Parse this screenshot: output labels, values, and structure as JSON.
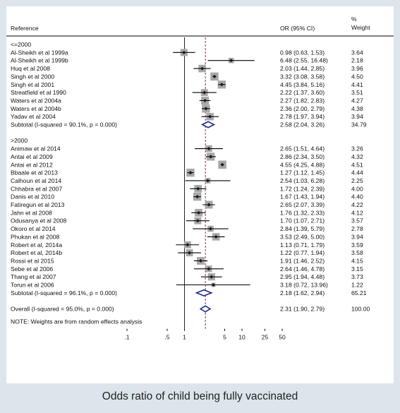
{
  "chart_data": {
    "type": "forest",
    "headers": {
      "reference": "Reference",
      "ci": "OR (95% CI)",
      "weight_line1": "%",
      "weight_line2": "Weight"
    },
    "x_scale": "log",
    "xlim": [
      0.1,
      50
    ],
    "x_ticks": [
      {
        "value": 0.1,
        "label": ".1"
      },
      {
        "value": 0.5,
        "label": ".5"
      },
      {
        "value": 1,
        "label": "1"
      },
      {
        "value": 5,
        "label": "5"
      },
      {
        "value": 10,
        "label": "10"
      },
      {
        "value": 25,
        "label": "25"
      },
      {
        "value": 50,
        "label": "50"
      }
    ],
    "xlabel": "Odds ratio of child being fully vaccinated",
    "null_line": 1,
    "overall_line": 2.31,
    "groups": [
      {
        "name": "<=2000",
        "studies": [
          {
            "label": "Al-Sheikh et al 1999a",
            "or": 0.98,
            "lo": 0.63,
            "hi": 1.53,
            "ci_text": "0.98 (0.63, 1.53)",
            "weight": "3.64"
          },
          {
            "label": "Al-Sheikh et al 1999b",
            "or": 6.48,
            "lo": 2.55,
            "hi": 16.48,
            "ci_text": "6.48 (2.55, 16.48)",
            "weight": "2.18"
          },
          {
            "label": "Huq et al 2008",
            "or": 2.03,
            "lo": 1.44,
            "hi": 2.85,
            "ci_text": "2.03 (1.44, 2.85)",
            "weight": "3.96"
          },
          {
            "label": "Singh et al 2000",
            "or": 3.32,
            "lo": 3.08,
            "hi": 3.58,
            "ci_text": "3.32 (3.08, 3.58)",
            "weight": "4.50"
          },
          {
            "label": "Singh et al 2001",
            "or": 4.45,
            "lo": 3.84,
            "hi": 5.16,
            "ci_text": "4.45 (3.84, 5.16)",
            "weight": "4.41"
          },
          {
            "label": "Streatfield et al 1990",
            "or": 2.22,
            "lo": 1.37,
            "hi": 3.6,
            "ci_text": "2.22 (1.37, 3.60)",
            "weight": "3.51"
          },
          {
            "label": "Waters et al 2004a",
            "or": 2.27,
            "lo": 1.82,
            "hi": 2.83,
            "ci_text": "2.27 (1.82, 2.83)",
            "weight": "4.27"
          },
          {
            "label": "Waters et al 2004b",
            "or": 2.36,
            "lo": 2.0,
            "hi": 2.79,
            "ci_text": "2.36 (2.00, 2.79)",
            "weight": "4.38"
          },
          {
            "label": "Yadav et al 2004",
            "or": 2.78,
            "lo": 1.97,
            "hi": 3.94,
            "ci_text": "2.78 (1.97, 3.94)",
            "weight": "3.94"
          }
        ],
        "subtotal": {
          "label": "Subtotal  (I-squared = 90.1%, p = 0.000)",
          "or": 2.58,
          "lo": 2.04,
          "hi": 3.26,
          "ci_text": "2.58 (2.04, 3.26)",
          "weight": "34.79"
        }
      },
      {
        "name": ">2000",
        "studies": [
          {
            "label": "Animaw et al 2014",
            "or": 2.65,
            "lo": 1.51,
            "hi": 4.64,
            "ci_text": "2.65 (1.51, 4.64)",
            "weight": "3.26"
          },
          {
            "label": "Antai et al 2009",
            "or": 2.86,
            "lo": 2.34,
            "hi": 3.5,
            "ci_text": "2.86 (2.34, 3.50)",
            "weight": "4.32"
          },
          {
            "label": "Antai et al 2012",
            "or": 4.55,
            "lo": 4.25,
            "hi": 4.88,
            "ci_text": "4.55 (4.25, 4.88)",
            "weight": "4.51"
          },
          {
            "label": "Bbaale et al 2013",
            "or": 1.27,
            "lo": 1.12,
            "hi": 1.45,
            "ci_text": "1.27 (1.12, 1.45)",
            "weight": "4.44"
          },
          {
            "label": "Calhoun et al 2014",
            "or": 2.54,
            "lo": 1.03,
            "hi": 6.28,
            "ci_text": "2.54 (1.03, 6.28)",
            "weight": "2.25"
          },
          {
            "label": "Chhabra et al 2007",
            "or": 1.72,
            "lo": 1.24,
            "hi": 2.39,
            "ci_text": "1.72 (1.24, 2.39)",
            "weight": "4.00"
          },
          {
            "label": "Danis et al 2010",
            "or": 1.67,
            "lo": 1.43,
            "hi": 1.94,
            "ci_text": "1.67 (1.43, 1.94)",
            "weight": "4.40"
          },
          {
            "label": "Fatiregun et al 2013",
            "or": 2.65,
            "lo": 2.07,
            "hi": 3.39,
            "ci_text": "2.65 (2.07, 3.39)",
            "weight": "4.22"
          },
          {
            "label": "Jahn et al 2008",
            "or": 1.76,
            "lo": 1.32,
            "hi": 2.33,
            "ci_text": "1.76 (1.32, 2.33)",
            "weight": "4.12"
          },
          {
            "label": "Odusanya et al 2008",
            "or": 1.7,
            "lo": 1.07,
            "hi": 2.71,
            "ci_text": "1.70 (1.07, 2.71)",
            "weight": "3.57"
          },
          {
            "label": "Okoro et al 2014",
            "or": 2.84,
            "lo": 1.39,
            "hi": 5.79,
            "ci_text": "2.84 (1.39, 5.79)",
            "weight": "2.78"
          },
          {
            "label": "Phukan et al 2008",
            "or": 3.53,
            "lo": 2.49,
            "hi": 5.0,
            "ci_text": "3.53 (2.49, 5.00)",
            "weight": "3.94"
          },
          {
            "label": "Robert et al, 2014a",
            "or": 1.13,
            "lo": 0.71,
            "hi": 1.79,
            "ci_text": "1.13 (0.71, 1.79)",
            "weight": "3.59"
          },
          {
            "label": "Robert et al, 2014b",
            "or": 1.22,
            "lo": 0.77,
            "hi": 1.94,
            "ci_text": "1.22 (0.77, 1.94)",
            "weight": "3.58"
          },
          {
            "label": "Rossi et al 2015",
            "or": 1.91,
            "lo": 1.46,
            "hi": 2.52,
            "ci_text": "1.91 (1.46, 2.52)",
            "weight": "4.15"
          },
          {
            "label": "Sebe et al 2006",
            "or": 2.64,
            "lo": 1.46,
            "hi": 4.78,
            "ci_text": "2.64 (1.46, 4.78)",
            "weight": "3.15"
          },
          {
            "label": "Thang et al 2007",
            "or": 2.95,
            "lo": 1.94,
            "hi": 4.48,
            "ci_text": "2.95 (1.94, 4.48)",
            "weight": "3.73"
          },
          {
            "label": "Torun et al 2006",
            "or": 3.18,
            "lo": 0.72,
            "hi": 13.96,
            "ci_text": "3.18 (0.72, 13.96)",
            "weight": "1.22"
          }
        ],
        "subtotal": {
          "label": "Subtotal  (I-squared = 96.1%, p = 0.000)",
          "or": 2.18,
          "lo": 1.62,
          "hi": 2.94,
          "ci_text": "2.18 (1.62, 2.94)",
          "weight": "65.21"
        }
      }
    ],
    "overall": {
      "label": "Overall  (I-squared = 95.0%, p = 0.000)",
      "or": 2.31,
      "lo": 1.9,
      "hi": 2.79,
      "ci_text": "2.31 (1.90, 2.79)",
      "weight": "100.00"
    },
    "note": "NOTE: Weights are from random effects analysis",
    "colors": {
      "box": "#a8a8a8",
      "point": "#1a1a1a",
      "diamond": "#1f2a8a",
      "null_line": "#222222",
      "overall_line": "#8b2f2f"
    }
  }
}
